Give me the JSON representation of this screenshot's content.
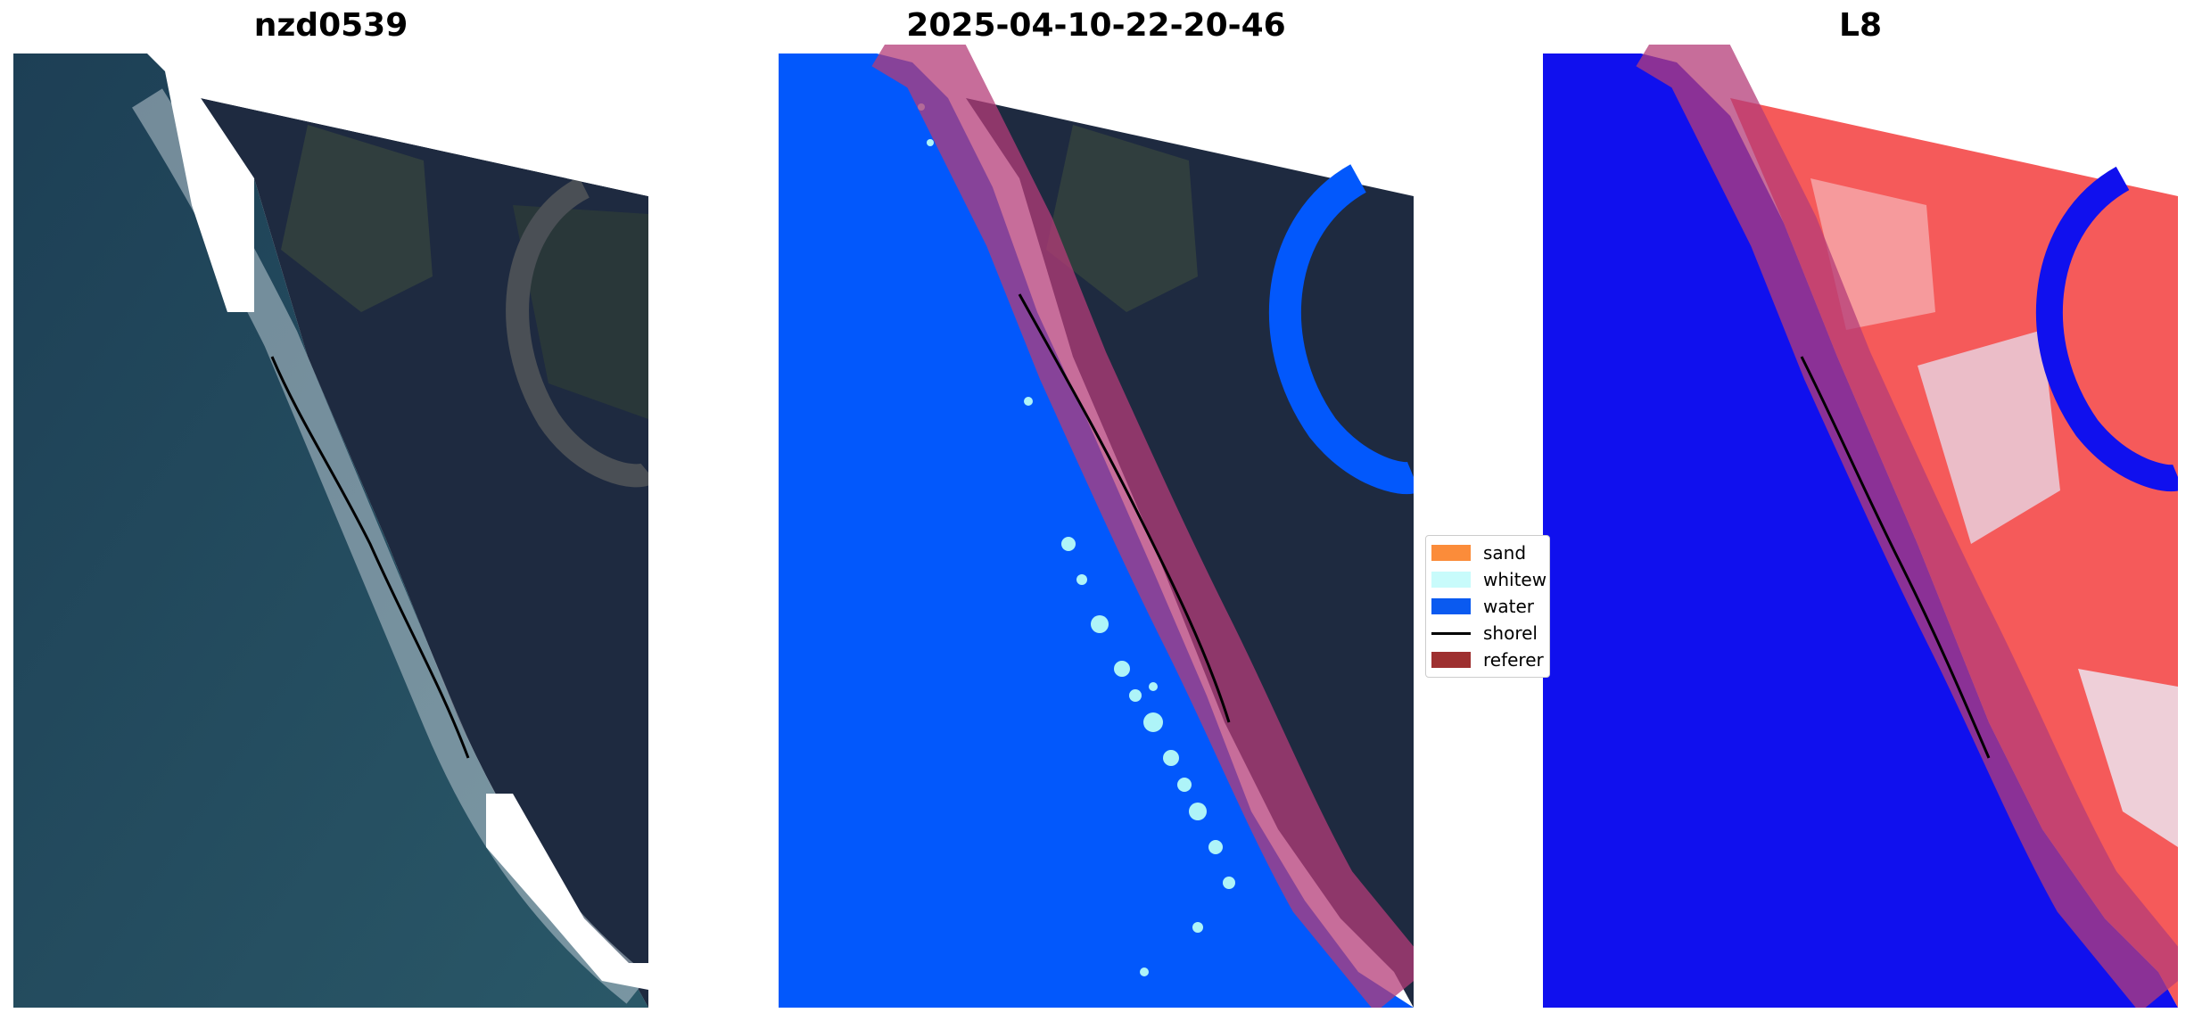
{
  "panels": [
    {
      "title": "nzd0539"
    },
    {
      "title": "2025-04-10-22-20-46"
    },
    {
      "title": "L8"
    }
  ],
  "legend": {
    "items": [
      {
        "label": "sand",
        "color": "#fb8c3a"
      },
      {
        "label": "whitew",
        "color": "#c8fbfb"
      },
      {
        "label": "water",
        "color": "#0a5af0"
      },
      {
        "label": "shorel",
        "color": "#000000"
      },
      {
        "label": "referer",
        "color": "#9e3030"
      }
    ]
  },
  "colors": {
    "ocean_rgb": "#1f4a5e",
    "land_rgb": "#1e2a40",
    "water_class": "#0258fc",
    "whitewater_class": "#aef4f8",
    "reference_buffer": "#b43c78",
    "index_water": "#1010ee",
    "index_land": "#f55a5a"
  }
}
